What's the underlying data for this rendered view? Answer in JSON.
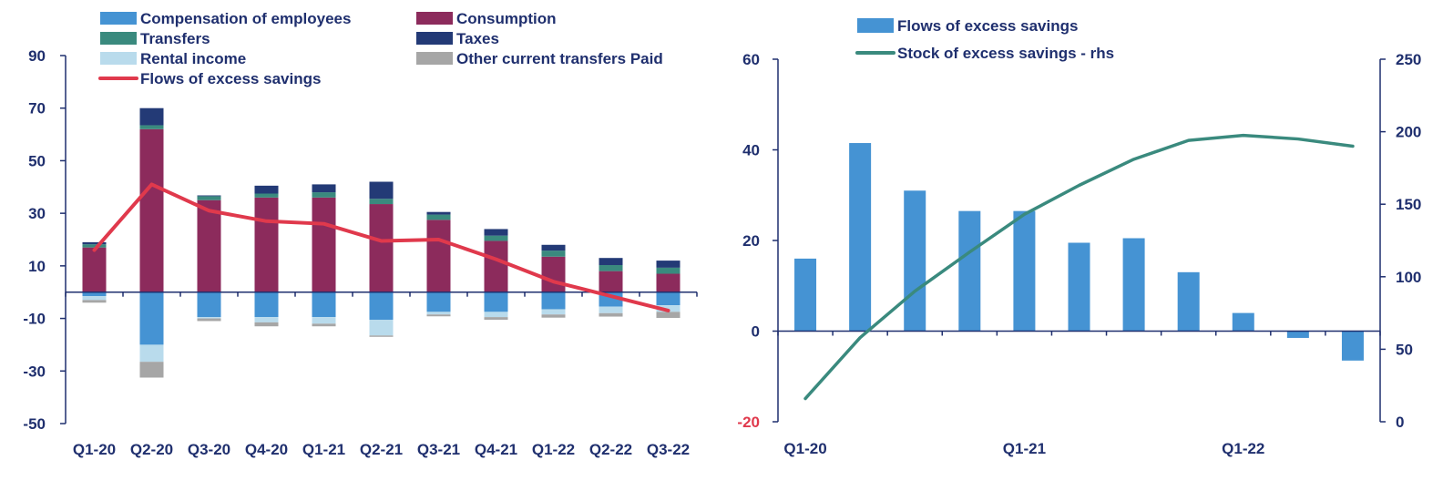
{
  "chart_data": [
    {
      "type": "bar",
      "stacked": true,
      "categories": [
        "Q1-20",
        "Q2-20",
        "Q3-20",
        "Q4-20",
        "Q1-21",
        "Q2-21",
        "Q3-21",
        "Q4-21",
        "Q1-22",
        "Q2-22",
        "Q3-22"
      ],
      "ylim": [
        -50,
        90
      ],
      "yticks": [
        -50,
        -30,
        -10,
        10,
        30,
        50,
        70,
        90
      ],
      "legend_position": "top",
      "series": [
        {
          "name": "Compensation of employees",
          "color": "#4593d3",
          "values": [
            -1.5,
            -20,
            -9.5,
            -9.5,
            -9.5,
            -10.5,
            -7.5,
            -7.5,
            -6.5,
            -5.5,
            -5
          ]
        },
        {
          "name": "Consumption",
          "color": "#8c2b5c",
          "values": [
            17,
            62,
            35,
            36,
            36,
            33.5,
            27.5,
            19.5,
            13.5,
            8,
            7
          ]
        },
        {
          "name": "Transfers",
          "color": "#3a8a7e",
          "values": [
            1.2,
            1.5,
            1.5,
            1.5,
            2,
            2,
            2,
            2,
            2.3,
            2.3,
            2.3
          ]
        },
        {
          "name": "Taxes",
          "color": "#233a76",
          "values": [
            0.8,
            6.5,
            0.3,
            3,
            3,
            6.5,
            1,
            2.5,
            2.2,
            2.7,
            2.7
          ]
        },
        {
          "name": "Rental income",
          "color": "#b9dbec",
          "values": [
            -1.5,
            -6.5,
            -0.5,
            -2,
            -2.5,
            -6,
            -1,
            -2,
            -2,
            -2.5,
            -2.5
          ]
        },
        {
          "name": "Other current transfers Paid",
          "color": "#a6a6a6",
          "values": [
            -1,
            -6,
            -1,
            -1.5,
            -1,
            -0.5,
            -0.7,
            -1,
            -1.2,
            -1.3,
            -2.3
          ]
        },
        {
          "name": "Flows of excess savings",
          "color": "#e0394c",
          "type": "line",
          "values": [
            16,
            41,
            31,
            27,
            26,
            19.5,
            20,
            12.5,
            4,
            -1.5,
            -7
          ]
        }
      ]
    },
    {
      "type": "bar",
      "x": [
        "Q1-20",
        "Q2-20",
        "Q3-20",
        "Q4-20",
        "Q1-21",
        "Q2-21",
        "Q3-21",
        "Q4-21",
        "Q1-22",
        "Q2-22",
        "Q3-22"
      ],
      "xtick_labels": [
        "Q1-20",
        "Q1-21",
        "Q1-22"
      ],
      "ylim": [
        -20,
        60
      ],
      "yticks": [
        -20,
        0,
        20,
        40,
        60
      ],
      "y2lim": [
        0,
        250
      ],
      "y2ticks": [
        0,
        50,
        100,
        150,
        200,
        250
      ],
      "legend_position": "top",
      "series": [
        {
          "name": "Flows of excess savings",
          "color": "#4593d3",
          "type": "bar",
          "axis": "left",
          "values": [
            16,
            41.5,
            31,
            26.5,
            26.5,
            19.5,
            20.5,
            13,
            4,
            -1.5,
            -6.5
          ]
        },
        {
          "name": "Stock of excess savings - rhs",
          "color": "#3a8a7e",
          "type": "line",
          "axis": "right",
          "values": [
            16,
            58,
            90,
            117,
            143,
            163,
            181,
            194,
            197.5,
            195,
            190
          ]
        }
      ],
      "negative_tick_color": "#e0394c"
    }
  ]
}
